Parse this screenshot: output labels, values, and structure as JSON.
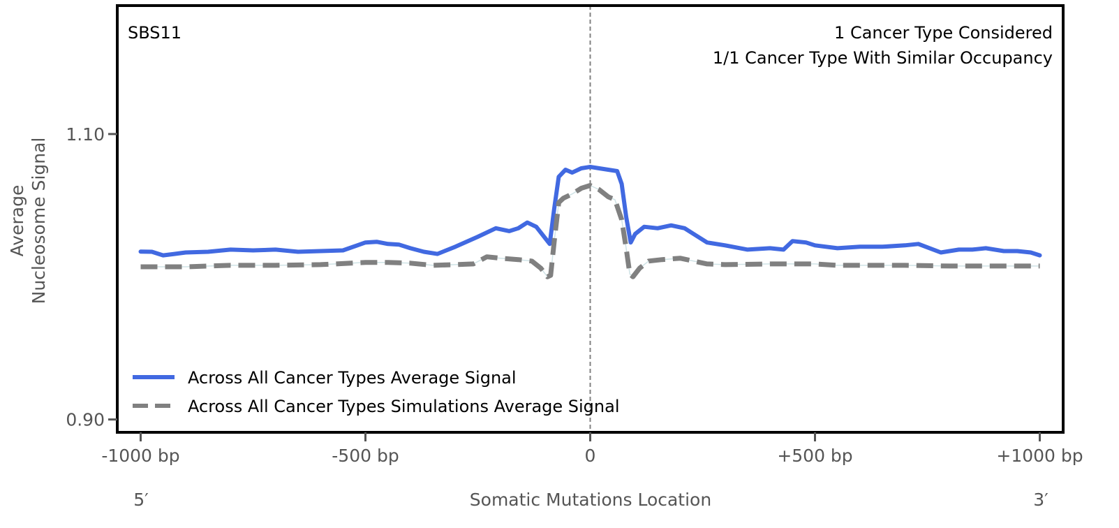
{
  "chart_data": {
    "type": "line",
    "title": "",
    "signature_label": "SBS11",
    "annotations": [
      "1 Cancer Type Considered",
      "1/1 Cancer Type With Similar Occupancy"
    ],
    "xlabel": "Somatic Mutations Location",
    "ylabel_lines": [
      "Average",
      "Nucleosome Signal"
    ],
    "xlim": [
      -1052,
      1052
    ],
    "ylim": [
      0.891,
      1.19
    ],
    "x_ticks": [
      {
        "value": -1000,
        "label": "-1000 bp"
      },
      {
        "value": -500,
        "label": "-500 bp"
      },
      {
        "value": 0,
        "label": "0"
      },
      {
        "value": 500,
        "label": "+500 bp"
      },
      {
        "value": 1000,
        "label": "+1000 bp"
      }
    ],
    "y_ticks": [
      {
        "value": 1.1,
        "label": "1.10"
      },
      {
        "value": 0.9,
        "label": "0.90"
      }
    ],
    "strand_labels": {
      "left": "5′",
      "right": "3′"
    },
    "center_line": {
      "x": 0,
      "style": "dashed",
      "color": "#808080"
    },
    "grid": false,
    "legend_position": "bottom-left",
    "series": [
      {
        "name": "Across All Cancer Types Average Signal",
        "color": "#4169e1",
        "style": "solid",
        "x": [
          -1000,
          -975,
          -950,
          -925,
          -900,
          -850,
          -800,
          -750,
          -700,
          -650,
          -600,
          -550,
          -500,
          -475,
          -450,
          -425,
          -400,
          -370,
          -340,
          -300,
          -250,
          -210,
          -180,
          -160,
          -140,
          -120,
          -100,
          -90,
          -80,
          -70,
          -55,
          -40,
          -20,
          0,
          20,
          40,
          60,
          70,
          80,
          90,
          100,
          120,
          150,
          180,
          210,
          230,
          260,
          300,
          350,
          400,
          430,
          450,
          480,
          500,
          550,
          600,
          650,
          700,
          730,
          780,
          820,
          850,
          880,
          920,
          950,
          980,
          1000
        ],
        "values": [
          1.0176,
          1.0175,
          1.015,
          1.016,
          1.017,
          1.0175,
          1.019,
          1.0185,
          1.019,
          1.0175,
          1.018,
          1.0185,
          1.024,
          1.0245,
          1.023,
          1.0225,
          1.02,
          1.0175,
          1.016,
          1.021,
          1.028,
          1.034,
          1.032,
          1.034,
          1.038,
          1.035,
          1.027,
          1.023,
          1.048,
          1.07,
          1.075,
          1.073,
          1.076,
          1.077,
          1.076,
          1.075,
          1.074,
          1.065,
          1.042,
          1.024,
          1.03,
          1.035,
          1.034,
          1.036,
          1.034,
          1.03,
          1.024,
          1.022,
          1.019,
          1.02,
          1.019,
          1.025,
          1.024,
          1.022,
          1.02,
          1.021,
          1.021,
          1.022,
          1.023,
          1.017,
          1.019,
          1.019,
          1.02,
          1.018,
          1.018,
          1.017,
          1.015
        ]
      },
      {
        "name": "Across All Cancer Types Simulations Average Signal",
        "color": "#808080",
        "style": "dashed",
        "x": [
          -1000,
          -900,
          -800,
          -700,
          -600,
          -500,
          -450,
          -400,
          -350,
          -300,
          -260,
          -230,
          -200,
          -160,
          -130,
          -110,
          -95,
          -88,
          -80,
          -70,
          -60,
          -40,
          -20,
          0,
          20,
          40,
          55,
          70,
          80,
          88,
          95,
          110,
          130,
          160,
          200,
          230,
          260,
          300,
          400,
          500,
          550,
          600,
          700,
          800,
          900,
          1000
        ],
        "values": [
          1.007,
          1.007,
          1.008,
          1.008,
          1.0085,
          1.01,
          1.01,
          1.0095,
          1.008,
          1.0085,
          1.009,
          1.014,
          1.013,
          1.012,
          1.011,
          1.006,
          1.0,
          1.001,
          1.025,
          1.052,
          1.055,
          1.058,
          1.062,
          1.064,
          1.061,
          1.056,
          1.054,
          1.04,
          1.02,
          1.002,
          1.0,
          1.006,
          1.011,
          1.012,
          1.013,
          1.011,
          1.009,
          1.0085,
          1.009,
          1.009,
          1.008,
          1.008,
          1.008,
          1.0075,
          1.0075,
          1.0075
        ]
      }
    ]
  }
}
